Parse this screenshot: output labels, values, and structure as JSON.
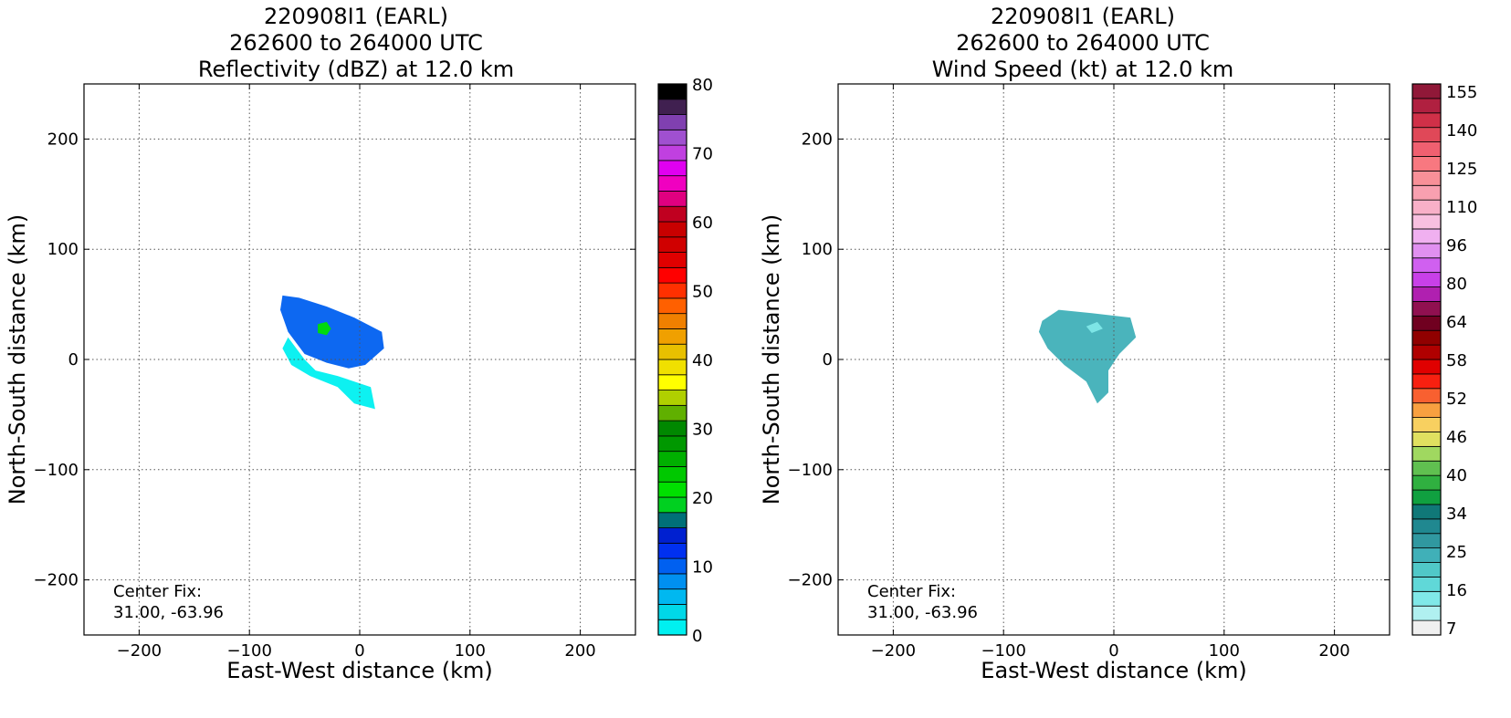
{
  "panels": [
    {
      "title_line1": "220908I1 (EARL)",
      "title_line2": "262600 to 264000 UTC",
      "title_line3": "Reflectivity (dBZ) at 12.0 km",
      "center_fix_label": "Center Fix:",
      "center_fix_value": "31.00, -63.96"
    },
    {
      "title_line1": "220908I1 (EARL)",
      "title_line2": "262600 to 264000 UTC",
      "title_line3": "Wind Speed (kt) at 12.0 km",
      "center_fix_label": "Center Fix:",
      "center_fix_value": "31.00, -63.96"
    }
  ],
  "chart_data": [
    {
      "type": "heatmap",
      "title": "220908I1 (EARL) 262600 to 264000 UTC Reflectivity (dBZ) at 12.0 km",
      "xlabel": "East-West distance (km)",
      "ylabel": "North-South distance (km)",
      "xlim": [
        -250,
        250
      ],
      "ylim": [
        -250,
        250
      ],
      "xticks": [
        -200,
        -100,
        0,
        100,
        200
      ],
      "yticks": [
        -200,
        -100,
        0,
        100,
        200
      ],
      "grid": true,
      "colorbar": {
        "label": "dBZ",
        "min": 0,
        "max": 80,
        "ticks": [
          0,
          10,
          20,
          30,
          40,
          50,
          60,
          70,
          80
        ],
        "colors": [
          "#00f0f0",
          "#00d8e8",
          "#00b8f0",
          "#0090f0",
          "#0060f0",
          "#0030f0",
          "#0020d0",
          "#007078",
          "#00d020",
          "#00e000",
          "#00c800",
          "#00b000",
          "#009800",
          "#008800",
          "#60b000",
          "#b0d000",
          "#ffff00",
          "#f0e000",
          "#e8c000",
          "#f0a000",
          "#f08000",
          "#ff6000",
          "#ff3000",
          "#ff0000",
          "#e00000",
          "#d00000",
          "#c80000",
          "#c00020",
          "#e00080",
          "#f000c0",
          "#e000f0",
          "#c040e0",
          "#a050d0",
          "#8040b0",
          "#402050",
          "#000000"
        ]
      },
      "regions": [
        {
          "name": "main-echo",
          "level_dbz": 10,
          "polygon": [
            [
              -70,
              58
            ],
            [
              -55,
              56
            ],
            [
              -30,
              48
            ],
            [
              -5,
              38
            ],
            [
              20,
              25
            ],
            [
              22,
              10
            ],
            [
              5,
              -5
            ],
            [
              -10,
              -8
            ],
            [
              -30,
              -3
            ],
            [
              -50,
              5
            ],
            [
              -65,
              25
            ],
            [
              -72,
              45
            ]
          ]
        },
        {
          "name": "outer-echo",
          "level_dbz": 2,
          "polygon": [
            [
              -65,
              20
            ],
            [
              -50,
              0
            ],
            [
              -40,
              -10
            ],
            [
              -20,
              -15
            ],
            [
              10,
              -25
            ],
            [
              14,
              -45
            ],
            [
              -5,
              -40
            ],
            [
              -20,
              -25
            ],
            [
              -45,
              -15
            ],
            [
              -62,
              -5
            ],
            [
              -70,
              10
            ]
          ]
        },
        {
          "name": "core",
          "level_dbz": 22,
          "polygon": [
            [
              -38,
              32
            ],
            [
              -30,
              34
            ],
            [
              -26,
              28
            ],
            [
              -30,
              22
            ],
            [
              -38,
              24
            ]
          ]
        }
      ],
      "center_fix": [
        31.0,
        -63.96
      ]
    },
    {
      "type": "heatmap",
      "title": "220908I1 (EARL) 262600 to 264000 UTC Wind Speed (kt) at 12.0 km",
      "xlabel": "East-West distance (km)",
      "ylabel": "North-South distance (km)",
      "xlim": [
        -250,
        250
      ],
      "ylim": [
        -250,
        250
      ],
      "xticks": [
        -200,
        -100,
        0,
        100,
        200
      ],
      "yticks": [
        -200,
        -100,
        0,
        100,
        200
      ],
      "grid": true,
      "colorbar": {
        "label": "kt",
        "ticks": [
          7,
          16,
          25,
          34,
          40,
          46,
          52,
          58,
          64,
          80,
          96,
          110,
          125,
          140,
          155
        ],
        "colors": [
          "#f0f0f0",
          "#b0f0f0",
          "#80e8e8",
          "#60d8d8",
          "#50c8c8",
          "#40b0b8",
          "#3098a0",
          "#208890",
          "#107878",
          "#10a040",
          "#30b040",
          "#60c050",
          "#a0d860",
          "#e0e060",
          "#f8d060",
          "#f8a040",
          "#f86030",
          "#f82010",
          "#e00000",
          "#b00000",
          "#900000",
          "#700020",
          "#901050",
          "#b020b0",
          "#c840e8",
          "#d060f0",
          "#e090f0",
          "#f0b0f0",
          "#f8c0e0",
          "#f8b0c8",
          "#f8a0b0",
          "#f89098",
          "#f87880",
          "#f06070",
          "#e04858",
          "#d03048",
          "#b02040",
          "#901838"
        ]
      },
      "regions": [
        {
          "name": "wind-field",
          "level_kt": 20,
          "polygon": [
            [
              -65,
              35
            ],
            [
              -50,
              45
            ],
            [
              -20,
              42
            ],
            [
              15,
              38
            ],
            [
              20,
              20
            ],
            [
              5,
              5
            ],
            [
              -5,
              -10
            ],
            [
              -5,
              -30
            ],
            [
              -15,
              -40
            ],
            [
              -25,
              -20
            ],
            [
              -45,
              -5
            ],
            [
              -60,
              10
            ],
            [
              -68,
              25
            ]
          ]
        },
        {
          "name": "wind-max",
          "level_kt": 7,
          "polygon": [
            [
              -25,
              30
            ],
            [
              -15,
              34
            ],
            [
              -10,
              28
            ],
            [
              -20,
              24
            ]
          ]
        }
      ],
      "center_fix": [
        31.0,
        -63.96
      ]
    }
  ]
}
